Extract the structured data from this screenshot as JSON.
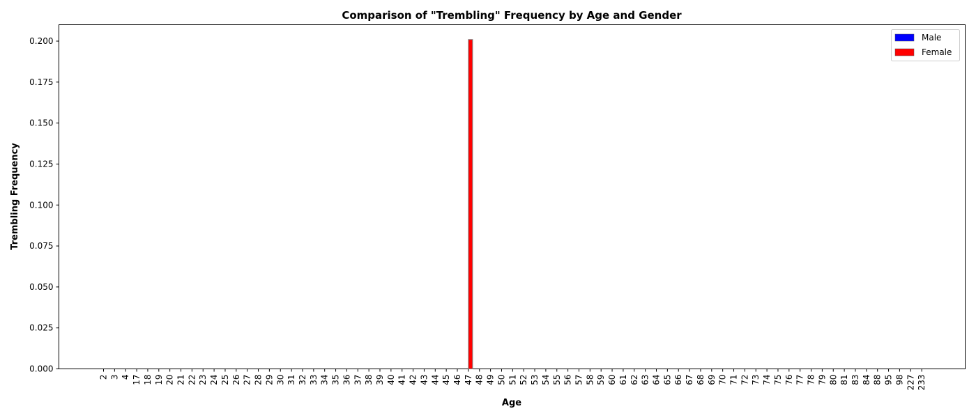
{
  "chart_data": {
    "type": "bar",
    "title": "Comparison of \"Trembling\" Frequency by Age and Gender",
    "xlabel": "Age",
    "ylabel": "Trembling Frequency",
    "ylim": [
      0,
      0.21
    ],
    "yticks": [
      "0.000",
      "0.025",
      "0.050",
      "0.075",
      "0.100",
      "0.125",
      "0.150",
      "0.175",
      "0.200"
    ],
    "grid": false,
    "legend_position": "top-right",
    "categories": [
      "2",
      "3",
      "4",
      "17",
      "18",
      "19",
      "20",
      "21",
      "22",
      "23",
      "24",
      "25",
      "26",
      "27",
      "28",
      "29",
      "30",
      "31",
      "32",
      "33",
      "34",
      "35",
      "36",
      "37",
      "38",
      "39",
      "40",
      "41",
      "42",
      "43",
      "44",
      "45",
      "46",
      "47",
      "48",
      "49",
      "50",
      "51",
      "52",
      "53",
      "54",
      "55",
      "56",
      "57",
      "58",
      "59",
      "60",
      "61",
      "62",
      "63",
      "64",
      "65",
      "66",
      "67",
      "68",
      "69",
      "70",
      "71",
      "72",
      "73",
      "74",
      "75",
      "76",
      "77",
      "78",
      "79",
      "80",
      "81",
      "83",
      "84",
      "88",
      "95",
      "98",
      "227",
      "233"
    ],
    "series": [
      {
        "name": "Male",
        "color": "#0000ff",
        "values": [
          0,
          0,
          0,
          0,
          0,
          0,
          0,
          0,
          0,
          0,
          0,
          0,
          0,
          0,
          0,
          0,
          0,
          0,
          0,
          0,
          0,
          0,
          0,
          0,
          0,
          0,
          0,
          0,
          0,
          0,
          0,
          0,
          0,
          0,
          0,
          0,
          0,
          0,
          0,
          0,
          0,
          0,
          0,
          0,
          0,
          0,
          0,
          0,
          0,
          0,
          0,
          0,
          0,
          0,
          0,
          0,
          0,
          0,
          0,
          0,
          0,
          0,
          0,
          0,
          0,
          0,
          0,
          0,
          0,
          0,
          0,
          0,
          0,
          0,
          0
        ]
      },
      {
        "name": "Female",
        "color": "#ff0000",
        "values": [
          0,
          0,
          0,
          0,
          0,
          0,
          0,
          0,
          0,
          0,
          0,
          0,
          0,
          0,
          0,
          0,
          0,
          0,
          0,
          0,
          0,
          0,
          0,
          0,
          0,
          0,
          0,
          0,
          0,
          0,
          0,
          0,
          0,
          0.201,
          0,
          0,
          0,
          0,
          0,
          0,
          0,
          0,
          0,
          0,
          0,
          0,
          0,
          0,
          0,
          0,
          0,
          0,
          0,
          0,
          0,
          0,
          0,
          0,
          0,
          0,
          0,
          0,
          0,
          0,
          0,
          0,
          0,
          0,
          0,
          0,
          0,
          0,
          0,
          0,
          0
        ]
      }
    ]
  }
}
